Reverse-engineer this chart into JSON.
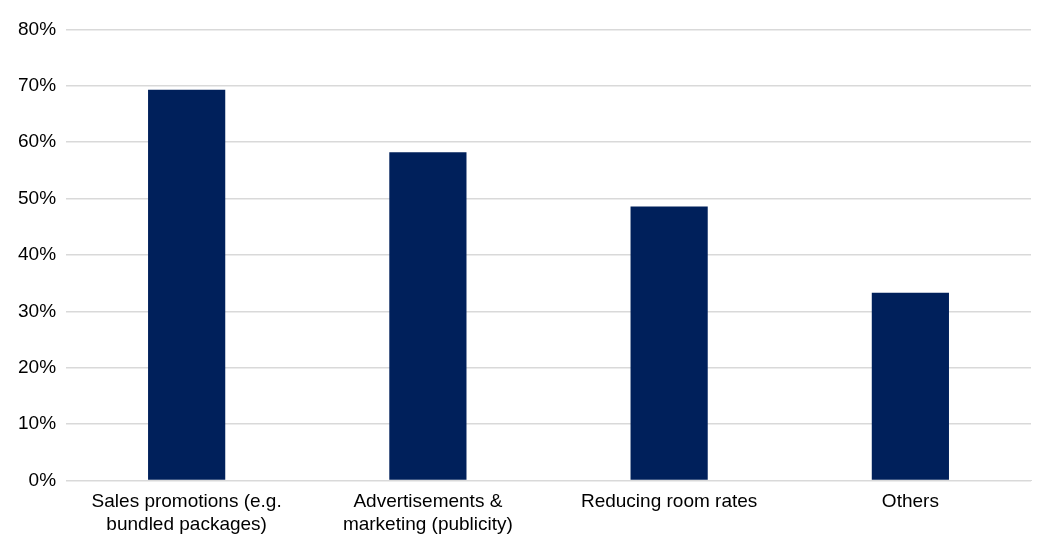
{
  "chart_data": {
    "type": "bar",
    "categories": [
      "Sales promotions (e.g. bundled packages)",
      "Advertisements & marketing (publicity)",
      "Reducing room rates",
      "Others"
    ],
    "values": [
      69.3,
      58.2,
      48.6,
      33.3
    ],
    "color": "#00205b",
    "ylim": [
      0,
      80
    ],
    "yticks": [
      {
        "value": 0,
        "label": "0%"
      },
      {
        "value": 10,
        "label": "10%"
      },
      {
        "value": 20,
        "label": "20%"
      },
      {
        "value": 30,
        "label": "30%"
      },
      {
        "value": 40,
        "label": "40%"
      },
      {
        "value": 50,
        "label": "50%"
      },
      {
        "value": 60,
        "label": "60%"
      },
      {
        "value": 70,
        "label": "70%"
      },
      {
        "value": 80,
        "label": "80%"
      }
    ],
    "grid": "y",
    "legend": false
  }
}
